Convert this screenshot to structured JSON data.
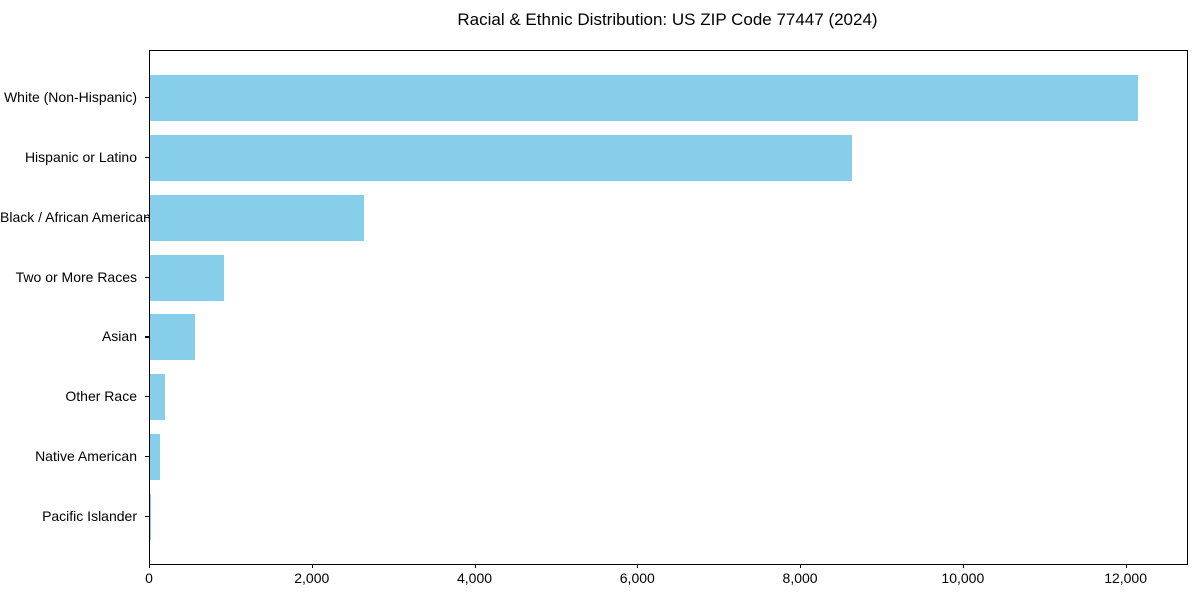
{
  "chart_data": {
    "type": "bar",
    "orientation": "horizontal",
    "title": "Racial & Ethnic Distribution: US ZIP Code 77447 (2024)",
    "categories": [
      "White (Non-Hispanic)",
      "Hispanic or Latino",
      "Black / African American",
      "Two or More Races",
      "Asian",
      "Other Race",
      "Native American",
      "Pacific Islander"
    ],
    "values": [
      12135,
      8625,
      2630,
      915,
      555,
      180,
      125,
      4
    ],
    "xlabel": "",
    "ylabel": "",
    "xlim": [
      0,
      12742
    ],
    "x_ticks": [
      0,
      2000,
      4000,
      6000,
      8000,
      10000,
      12000
    ],
    "x_tick_labels": [
      "0",
      "2,000",
      "4,000",
      "6,000",
      "8,000",
      "10,000",
      "12,000"
    ],
    "bar_color": "#87CEEB",
    "background_color": "#ffffff",
    "text_color": "#000000",
    "grid": false,
    "legend_position": "none"
  }
}
